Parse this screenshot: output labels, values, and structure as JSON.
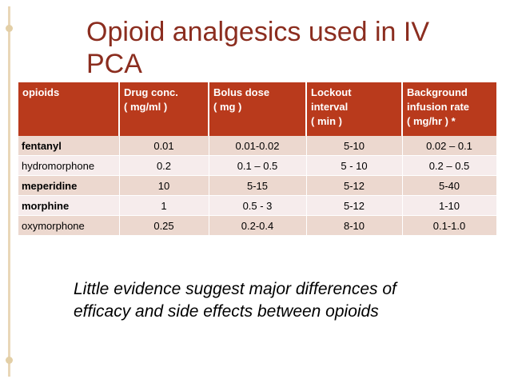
{
  "title_lines": [
    "Opioid analgesics used in IV",
    "PCA"
  ],
  "table": {
    "headers": [
      [
        "opioids"
      ],
      [
        "Drug conc.",
        "( mg/ml )"
      ],
      [
        "Bolus dose",
        "( mg )"
      ],
      [
        "Lockout",
        "interval",
        "( min )"
      ],
      [
        "Background",
        "infusion rate",
        "( mg/hr ) *"
      ]
    ],
    "rows": [
      {
        "name": "fentanyl",
        "conc": "0.01",
        "bolus": "0.01-0.02",
        "lockout": "5-10",
        "infusion": "0.02 – 0.1"
      },
      {
        "name": "hydromorphone",
        "conc": "0.2",
        "bolus": "0.1 – 0.5",
        "lockout": "5 - 10",
        "infusion": "0.2 – 0.5"
      },
      {
        "name": "meperidine",
        "conc": "10",
        "bolus": "5-15",
        "lockout": "5-12",
        "infusion": "5-40"
      },
      {
        "name": "morphine",
        "conc": "1",
        "bolus": "0.5 - 3",
        "lockout": "5-12",
        "infusion": "1-10"
      },
      {
        "name": "oxymorphone",
        "conc": "0.25",
        "bolus": "0.2-0.4",
        "lockout": "8-10",
        "infusion": "0.1-1.0"
      }
    ]
  },
  "note_lines": [
    "Little evidence suggest major differences of",
    "efficacy and side effects between opioids"
  ],
  "colors": {
    "title": "#8b2d1f",
    "header_bg": "#b93a1c",
    "row_odd": "#ecd8cf",
    "row_even": "#f6ecec",
    "accent": "#e3cfa6"
  }
}
